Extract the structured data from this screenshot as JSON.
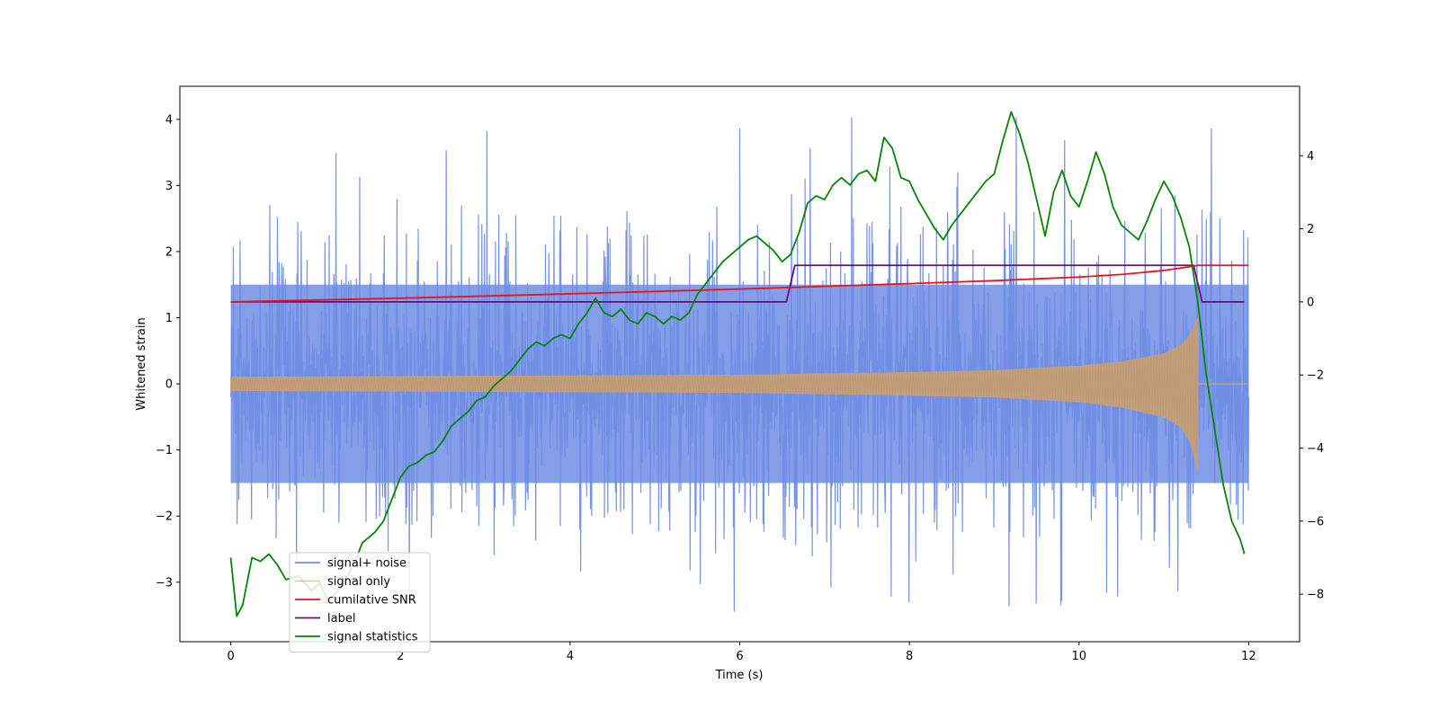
{
  "chart_data": {
    "type": "line",
    "title": "",
    "xlabel": "Time (s)",
    "ylabel": "Whitened strain",
    "y2label": "",
    "xlim": [
      -0.6,
      12.6
    ],
    "ylim": [
      -3.9,
      4.5
    ],
    "y2lim": [
      -9.3,
      5.9
    ],
    "xticks": [
      0,
      2,
      4,
      6,
      8,
      10,
      12
    ],
    "yticks": [
      -3,
      -2,
      -1,
      0,
      1,
      2,
      3,
      4
    ],
    "y2ticks": [
      -8,
      -6,
      -4,
      -2,
      0,
      2,
      4
    ],
    "legend_position": "lower-left",
    "series": [
      {
        "name": "signal+ noise",
        "axis": "left",
        "color": "#6f8de4",
        "kind": "noise-band",
        "x_range": [
          0,
          12
        ],
        "core_range": [
          -1.5,
          1.5
        ],
        "peak_range": [
          -3.5,
          4.2
        ]
      },
      {
        "name": "signal only",
        "axis": "left",
        "color": "#c6a077",
        "kind": "chirp-envelope",
        "x_range": [
          0,
          12
        ],
        "merger_time": 11.4,
        "envelope": {
          "x": [
            0,
            2,
            4,
            6,
            8,
            9,
            10,
            10.5,
            11,
            11.2,
            11.3,
            11.35,
            11.4
          ],
          "upper": [
            0.1,
            0.11,
            0.12,
            0.13,
            0.17,
            0.2,
            0.27,
            0.33,
            0.45,
            0.58,
            0.72,
            0.85,
            1.0
          ],
          "lower": [
            -0.1,
            -0.11,
            -0.12,
            -0.13,
            -0.17,
            -0.2,
            -0.27,
            -0.35,
            -0.5,
            -0.65,
            -0.85,
            -1.05,
            -1.3
          ]
        }
      },
      {
        "name": "cumilative SNR",
        "axis": "right",
        "color": "#e8131b",
        "x": [
          0,
          2,
          4,
          6,
          8,
          9,
          10,
          10.5,
          11,
          11.3,
          11.4,
          12
        ],
        "values": [
          0,
          0.1,
          0.22,
          0.35,
          0.5,
          0.58,
          0.68,
          0.75,
          0.86,
          0.96,
          1.0,
          1.0
        ]
      },
      {
        "name": "label",
        "axis": "right",
        "color": "#6a0c7a",
        "x": [
          0,
          6.55,
          6.65,
          11.35,
          11.45,
          11.95
        ],
        "values": [
          0,
          0,
          1,
          1,
          0,
          0
        ]
      },
      {
        "name": "signal statistics",
        "axis": "right",
        "color": "#068406",
        "x": [
          0,
          0.07,
          0.14,
          0.25,
          0.35,
          0.45,
          0.55,
          0.65,
          0.8,
          0.95,
          1.05,
          1.15,
          1.3,
          1.45,
          1.55,
          1.7,
          1.8,
          1.9,
          2.0,
          2.1,
          2.2,
          2.3,
          2.4,
          2.5,
          2.6,
          2.7,
          2.8,
          2.9,
          3.0,
          3.1,
          3.2,
          3.3,
          3.4,
          3.5,
          3.6,
          3.7,
          3.8,
          3.9,
          4.0,
          4.1,
          4.2,
          4.3,
          4.4,
          4.5,
          4.6,
          4.7,
          4.8,
          4.9,
          5.0,
          5.1,
          5.2,
          5.3,
          5.4,
          5.5,
          5.6,
          5.7,
          5.8,
          5.9,
          6.0,
          6.1,
          6.2,
          6.3,
          6.4,
          6.5,
          6.6,
          6.7,
          6.8,
          6.9,
          7.0,
          7.1,
          7.2,
          7.3,
          7.4,
          7.5,
          7.6,
          7.7,
          7.8,
          7.9,
          8.0,
          8.1,
          8.2,
          8.3,
          8.4,
          8.5,
          8.6,
          8.7,
          8.8,
          8.9,
          9.0,
          9.1,
          9.2,
          9.3,
          9.4,
          9.5,
          9.6,
          9.7,
          9.8,
          9.9,
          10.0,
          10.1,
          10.2,
          10.3,
          10.4,
          10.5,
          10.6,
          10.7,
          10.8,
          10.9,
          11.0,
          11.1,
          11.2,
          11.3,
          11.4,
          11.5,
          11.6,
          11.7,
          11.8,
          11.9,
          11.95
        ],
        "values": [
          -7.0,
          -8.6,
          -8.3,
          -7.0,
          -7.1,
          -6.9,
          -7.2,
          -7.6,
          -7.5,
          -7.9,
          -7.7,
          -8.2,
          -7.8,
          -7.2,
          -6.6,
          -6.3,
          -6.0,
          -5.4,
          -4.8,
          -4.5,
          -4.4,
          -4.2,
          -4.1,
          -3.8,
          -3.4,
          -3.2,
          -3.0,
          -2.7,
          -2.6,
          -2.3,
          -2.1,
          -1.9,
          -1.6,
          -1.3,
          -1.1,
          -1.2,
          -1.0,
          -0.9,
          -1.0,
          -0.6,
          -0.3,
          0.1,
          -0.3,
          -0.4,
          -0.2,
          -0.5,
          -0.6,
          -0.3,
          -0.4,
          -0.6,
          -0.4,
          -0.5,
          -0.3,
          0.2,
          0.5,
          0.8,
          1.1,
          1.3,
          1.5,
          1.7,
          1.8,
          1.6,
          1.4,
          1.1,
          1.3,
          1.9,
          2.7,
          2.9,
          2.8,
          3.2,
          3.4,
          3.2,
          3.5,
          3.6,
          3.3,
          4.5,
          4.2,
          3.4,
          3.3,
          2.8,
          2.4,
          2.0,
          1.7,
          2.1,
          2.4,
          2.7,
          3.0,
          3.3,
          3.5,
          4.4,
          5.2,
          4.6,
          3.8,
          2.8,
          1.8,
          3.0,
          3.6,
          2.9,
          2.6,
          3.3,
          4.1,
          3.5,
          2.6,
          2.1,
          1.9,
          1.7,
          2.2,
          2.8,
          3.3,
          2.9,
          2.3,
          1.5,
          0.0,
          -2.0,
          -3.5,
          -5.0,
          -6.0,
          -6.5,
          -6.9
        ]
      }
    ]
  }
}
